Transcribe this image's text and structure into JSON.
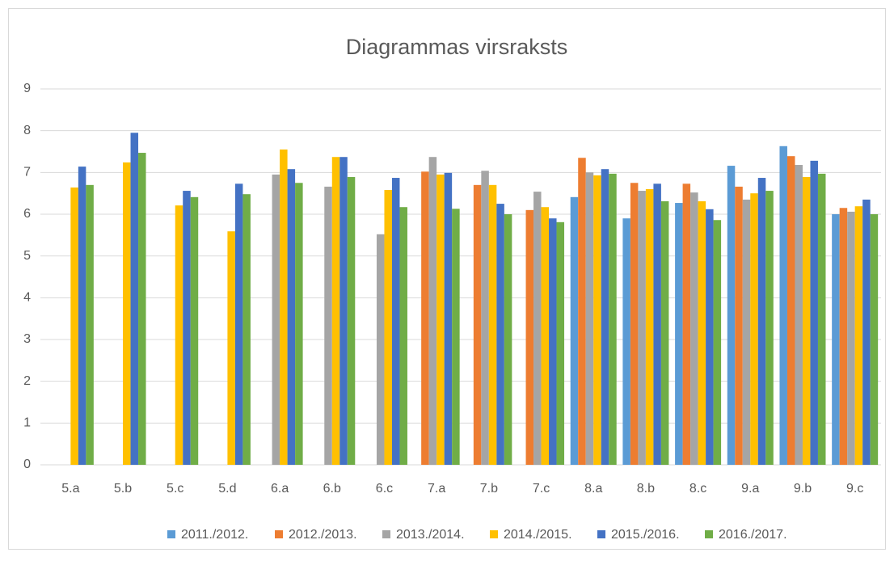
{
  "chart_data": {
    "type": "bar",
    "title": "Diagrammas virsraksts",
    "categories": [
      "5.a",
      "5.b",
      "5.c",
      "5.d",
      "6.a",
      "6.b",
      "6.c",
      "7.a",
      "7.b",
      "7.c",
      "8.a",
      "8.b",
      "8.c",
      "9.a",
      "9.b",
      "9.c"
    ],
    "series": [
      {
        "name": "2011./2012.",
        "color": "#5B9BD5",
        "values": [
          null,
          null,
          null,
          null,
          null,
          null,
          null,
          null,
          null,
          null,
          6.41,
          5.9,
          6.27,
          7.16,
          7.63,
          6.0
        ]
      },
      {
        "name": "2012./2013.",
        "color": "#ED7D31",
        "values": [
          null,
          null,
          null,
          null,
          null,
          null,
          null,
          7.02,
          6.7,
          6.1,
          7.35,
          6.75,
          6.73,
          6.66,
          7.39,
          6.15
        ]
      },
      {
        "name": "2013./2014.",
        "color": "#A5A5A5",
        "values": [
          null,
          null,
          null,
          null,
          6.95,
          6.66,
          5.52,
          7.37,
          7.04,
          6.54,
          7.0,
          6.56,
          6.52,
          6.35,
          7.18,
          6.06
        ]
      },
      {
        "name": "2014./2015.",
        "color": "#FFC000",
        "values": [
          6.64,
          7.24,
          6.21,
          5.59,
          7.55,
          7.37,
          6.58,
          6.95,
          6.7,
          6.17,
          6.93,
          6.6,
          6.31,
          6.5,
          6.89,
          6.19
        ]
      },
      {
        "name": "2015./2016.",
        "color": "#4472C4",
        "values": [
          7.14,
          7.95,
          6.56,
          6.73,
          7.08,
          7.37,
          6.87,
          6.99,
          6.25,
          5.9,
          7.08,
          6.73,
          6.12,
          6.87,
          7.28,
          6.35
        ]
      },
      {
        "name": "2016./2017.",
        "color": "#70AD47",
        "values": [
          6.7,
          7.47,
          6.41,
          6.48,
          6.75,
          6.89,
          6.17,
          6.13,
          6.0,
          5.81,
          6.97,
          6.31,
          5.86,
          6.56,
          6.97,
          6.0
        ]
      }
    ],
    "ylim": [
      0,
      9
    ],
    "yticks": [
      0,
      1,
      2,
      3,
      4,
      5,
      6,
      7,
      8,
      9
    ],
    "grid": true
  }
}
